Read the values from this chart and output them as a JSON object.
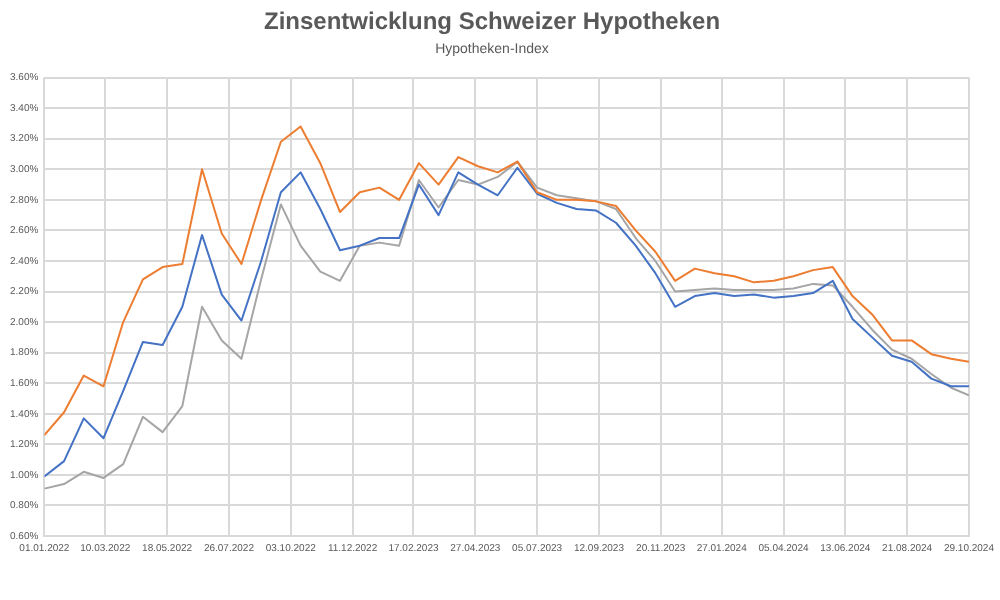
{
  "chart_data": {
    "type": "line",
    "title": "Zinsentwicklung Schweizer Hypotheken",
    "subtitle": "Hypotheken-Index",
    "x": [
      "2022-01-01",
      "2022-01-23",
      "2022-02-14",
      "2022-03-08",
      "2022-03-30",
      "2022-04-21",
      "2022-05-13",
      "2022-06-04",
      "2022-06-26",
      "2022-07-18",
      "2022-08-09",
      "2022-08-31",
      "2022-09-22",
      "2022-10-14",
      "2022-11-05",
      "2022-11-27",
      "2022-12-19",
      "2023-01-10",
      "2023-02-01",
      "2023-02-23",
      "2023-03-17",
      "2023-04-08",
      "2023-04-30",
      "2023-05-22",
      "2023-06-13",
      "2023-07-05",
      "2023-07-27",
      "2023-08-18",
      "2023-09-09",
      "2023-10-01",
      "2023-10-23",
      "2023-11-14",
      "2023-12-06",
      "2023-12-28",
      "2024-01-19",
      "2024-02-10",
      "2024-03-03",
      "2024-03-25",
      "2024-04-16",
      "2024-05-08",
      "2024-05-30",
      "2024-06-21",
      "2024-07-13",
      "2024-08-04",
      "2024-08-26",
      "2024-09-17",
      "2024-10-09",
      "2024-10-29"
    ],
    "series": [
      {
        "color": "#ed7d31",
        "values": [
          1.26,
          1.41,
          1.65,
          1.58,
          2.0,
          2.28,
          2.36,
          2.38,
          3.0,
          2.58,
          2.38,
          2.8,
          3.18,
          3.28,
          3.04,
          2.72,
          2.85,
          2.88,
          2.8,
          3.04,
          2.9,
          3.08,
          3.02,
          2.98,
          3.05,
          2.85,
          2.8,
          2.8,
          2.79,
          2.76,
          2.6,
          2.46,
          2.27,
          2.35,
          2.32,
          2.3,
          2.26,
          2.27,
          2.3,
          2.34,
          2.36,
          2.17,
          2.05,
          1.88,
          1.88,
          1.79,
          1.76,
          1.74
        ]
      },
      {
        "color": "#4472c4",
        "values": [
          0.99,
          1.09,
          1.37,
          1.24,
          1.55,
          1.87,
          1.85,
          2.1,
          2.57,
          2.18,
          2.01,
          2.4,
          2.85,
          2.98,
          2.74,
          2.47,
          2.5,
          2.55,
          2.55,
          2.9,
          2.7,
          2.98,
          2.9,
          2.83,
          3.01,
          2.84,
          2.78,
          2.74,
          2.73,
          2.65,
          2.5,
          2.32,
          2.1,
          2.17,
          2.19,
          2.17,
          2.18,
          2.16,
          2.17,
          2.19,
          2.27,
          2.02,
          1.9,
          1.78,
          1.74,
          1.63,
          1.58,
          1.58
        ]
      },
      {
        "color": "#a5a5a5",
        "values": [
          0.91,
          0.94,
          1.02,
          0.98,
          1.07,
          1.38,
          1.28,
          1.45,
          2.1,
          1.88,
          1.76,
          2.28,
          2.77,
          2.5,
          2.33,
          2.27,
          2.5,
          2.52,
          2.5,
          2.93,
          2.75,
          2.93,
          2.9,
          2.95,
          3.05,
          2.88,
          2.83,
          2.81,
          2.79,
          2.74,
          2.55,
          2.4,
          2.2,
          2.21,
          2.22,
          2.21,
          2.21,
          2.21,
          2.22,
          2.25,
          2.24,
          2.1,
          1.95,
          1.82,
          1.76,
          1.66,
          1.57,
          1.52
        ]
      }
    ],
    "xlim": [
      "2022-01-01",
      "2024-10-29"
    ],
    "xticks": [
      {
        "value": "2022-01-01",
        "label": "01.01.2022"
      },
      {
        "value": "2022-03-10",
        "label": "10.03.2022"
      },
      {
        "value": "2022-05-18",
        "label": "18.05.2022"
      },
      {
        "value": "2022-07-26",
        "label": "26.07.2022"
      },
      {
        "value": "2022-10-03",
        "label": "03.10.2022"
      },
      {
        "value": "2022-12-11",
        "label": "11.12.2022"
      },
      {
        "value": "2023-02-17",
        "label": "17.02.2023"
      },
      {
        "value": "2023-04-27",
        "label": "27.04.2023"
      },
      {
        "value": "2023-07-05",
        "label": "05.07.2023"
      },
      {
        "value": "2023-09-12",
        "label": "12.09.2023"
      },
      {
        "value": "2023-11-20",
        "label": "20.11.2023"
      },
      {
        "value": "2024-01-27",
        "label": "27.01.2024"
      },
      {
        "value": "2024-04-05",
        "label": "05.04.2024"
      },
      {
        "value": "2024-06-13",
        "label": "13.06.2024"
      },
      {
        "value": "2024-08-21",
        "label": "21.08.2024"
      },
      {
        "value": "2024-10-29",
        "label": "29.10.2024"
      }
    ],
    "ylim": [
      0.6,
      3.6
    ],
    "yticks": [
      {
        "value": 0.6,
        "label": "0.60%"
      },
      {
        "value": 0.8,
        "label": "0.80%"
      },
      {
        "value": 1.0,
        "label": "1.00%"
      },
      {
        "value": 1.2,
        "label": "1.20%"
      },
      {
        "value": 1.4,
        "label": "1.40%"
      },
      {
        "value": 1.6,
        "label": "1.60%"
      },
      {
        "value": 1.8,
        "label": "1.80%"
      },
      {
        "value": 2.0,
        "label": "2.00%"
      },
      {
        "value": 2.2,
        "label": "2.20%"
      },
      {
        "value": 2.4,
        "label": "2.40%"
      },
      {
        "value": 2.6,
        "label": "2.60%"
      },
      {
        "value": 2.8,
        "label": "2.80%"
      },
      {
        "value": 3.0,
        "label": "3.00%"
      },
      {
        "value": 3.2,
        "label": "3.20%"
      },
      {
        "value": 3.4,
        "label": "3.40%"
      },
      {
        "value": 3.6,
        "label": "3.60%"
      }
    ],
    "grid": true,
    "legend": false,
    "marker": "none",
    "line_style": "solid"
  }
}
